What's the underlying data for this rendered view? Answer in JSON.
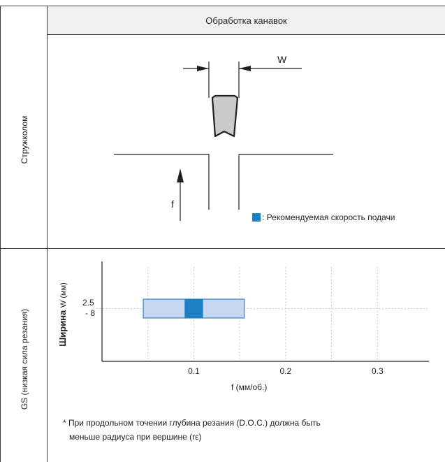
{
  "table": {
    "header": "Обработка канавок",
    "row1_label": "Стружколом",
    "row2_label": "GS (низкая сила резания)"
  },
  "groove_diagram": {
    "width_label": "W",
    "feed_label": "f",
    "legend_text": ": Рекомендуемая скорость подачи",
    "colors": {
      "legend": "#1f7fc4",
      "insert": "#c9cacb"
    }
  },
  "chart_data": {
    "type": "bar",
    "ylabel_main": "Ширина",
    "ylabel_unit": "W (мм)",
    "y_category": [
      "2.5",
      "- 8"
    ],
    "xlabel": "f (мм/об.)",
    "x_ticks": [
      "0.1",
      "0.2",
      "0.3"
    ],
    "x_tick_values": [
      0.1,
      0.2,
      0.3
    ],
    "xlim": [
      0,
      0.35
    ],
    "range": {
      "min": 0.045,
      "max": 0.155
    },
    "recommended": {
      "min": 0.09,
      "max": 0.11
    },
    "grid": true,
    "colors": {
      "range_fill": "#c7d7f1",
      "range_stroke": "#2e86c9",
      "recommended": "#1f7fc4"
    }
  },
  "footnote": {
    "line1": "* При продольном точении глубина резания (D.O.C.) должна быть",
    "line2": "меньше радиуса при вершине (rε)"
  }
}
